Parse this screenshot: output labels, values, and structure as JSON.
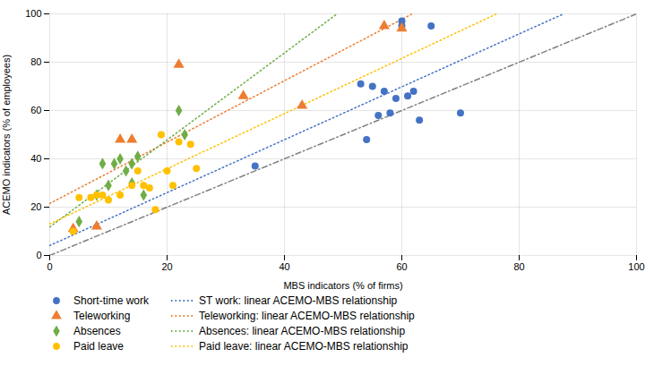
{
  "chart_data": {
    "type": "scatter",
    "xlabel": "MBS indicators (% of firms)",
    "ylabel": "ACEMO indicators (% of employees)",
    "xlim": [
      0,
      100
    ],
    "ylim": [
      0,
      100
    ],
    "xticks": [
      0,
      20,
      40,
      60,
      80,
      100
    ],
    "yticks": [
      0,
      20,
      40,
      60,
      80,
      100
    ],
    "grid": true,
    "series": [
      {
        "type": "line",
        "line_style": "dashdot",
        "color": "gray",
        "x": [
          0,
          100
        ],
        "values": [
          0,
          100
        ]
      },
      {
        "name": "Short-time work",
        "type": "scatter",
        "marker": "circle",
        "color": "#4472C4",
        "x": [
          35,
          53,
          54,
          55,
          56,
          57,
          58,
          59,
          60,
          60,
          61,
          62,
          63,
          65,
          70
        ],
        "values": [
          37,
          71,
          48,
          70,
          58,
          68,
          59,
          65,
          97,
          95,
          66,
          68,
          56,
          95,
          59
        ]
      },
      {
        "name": "Teleworking",
        "type": "scatter",
        "marker": "triangle",
        "color": "#ED7D31",
        "x": [
          4,
          8,
          12,
          14,
          22,
          33,
          43,
          57,
          60
        ],
        "values": [
          11,
          12,
          48,
          48,
          79,
          66,
          62,
          95,
          94
        ]
      },
      {
        "name": "Absences",
        "type": "scatter",
        "marker": "diamond",
        "color": "#70AD47",
        "x": [
          5,
          8,
          9,
          10,
          11,
          12,
          13,
          14,
          14,
          15,
          16,
          22,
          23
        ],
        "values": [
          14,
          25,
          38,
          29,
          38,
          40,
          35,
          30,
          38,
          41,
          25,
          60,
          50
        ]
      },
      {
        "name": "Paid leave",
        "type": "scatter",
        "marker": "circle",
        "color": "#FFC000",
        "x": [
          4,
          5,
          7,
          8,
          9,
          10,
          12,
          14,
          15,
          16,
          17,
          18,
          19,
          20,
          21,
          22,
          24,
          25
        ],
        "values": [
          10,
          24,
          24,
          25,
          25,
          23,
          25,
          29,
          35,
          29,
          28,
          19,
          50,
          35,
          29,
          47,
          46,
          36
        ]
      },
      {
        "name": "ST work: linear ACEMO-MBS relationship",
        "type": "line",
        "line_style": "dotted",
        "color": "#4472C4",
        "x": [
          0,
          87.58
        ],
        "values": [
          4.12,
          100
        ]
      },
      {
        "name": "Teleworking: linear ACEMO-MBS relationship",
        "type": "line",
        "line_style": "dotted",
        "color": "#ED7D31",
        "x": [
          0,
          61.78
        ],
        "values": [
          21.5,
          100
        ]
      },
      {
        "name": "Absences: linear ACEMO-MBS relationship",
        "type": "line",
        "line_style": "dotted",
        "color": "#70AD47",
        "x": [
          0,
          48.97
        ],
        "values": [
          11.78,
          100
        ]
      },
      {
        "name": "Paid leave: linear ACEMO-MBS relationship",
        "type": "line",
        "line_style": "dotted",
        "color": "#FFC000",
        "x": [
          0,
          76.15
        ],
        "values": [
          13.07,
          100
        ]
      }
    ]
  }
}
